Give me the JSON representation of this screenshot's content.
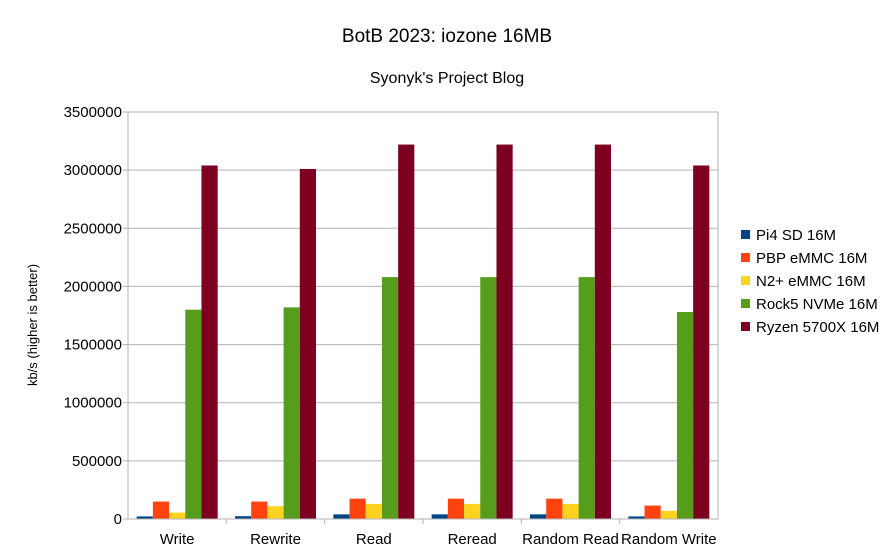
{
  "chart_data": {
    "type": "bar",
    "title": "BotB 2023: iozone 16MB",
    "subtitle": "Syonyk's Project Blog",
    "xlabel": "",
    "ylabel": "kb/s (higher is better)",
    "ylim": [
      0,
      3500000
    ],
    "yticks": [
      "0",
      "500000",
      "1000000",
      "1500000",
      "2000000",
      "2500000",
      "3000000",
      "3500000"
    ],
    "grid": "horizontal",
    "legend_position": "right",
    "categories": [
      "Write",
      "Rewrite",
      "Read",
      "Reread",
      "Random Read",
      "Random Write"
    ],
    "series": [
      {
        "name": "Pi4 SD 16M",
        "color": "#004586",
        "values": [
          22000,
          24000,
          40000,
          40000,
          40000,
          22000
        ]
      },
      {
        "name": "PBP eMMC 16M",
        "color": "#ff420e",
        "values": [
          150000,
          150000,
          175000,
          175000,
          175000,
          115000
        ]
      },
      {
        "name": "N2+ eMMC 16M",
        "color": "#ffd320",
        "values": [
          55000,
          110000,
          130000,
          130000,
          130000,
          70000
        ]
      },
      {
        "name": "Rock5 NVMe 16M",
        "color": "#579d1c",
        "values": [
          1800000,
          1820000,
          2080000,
          2080000,
          2080000,
          1780000
        ]
      },
      {
        "name": "Ryzen 5700X 16M",
        "color": "#7e0021",
        "values": [
          3040000,
          3010000,
          3220000,
          3220000,
          3220000,
          3040000
        ]
      }
    ]
  }
}
